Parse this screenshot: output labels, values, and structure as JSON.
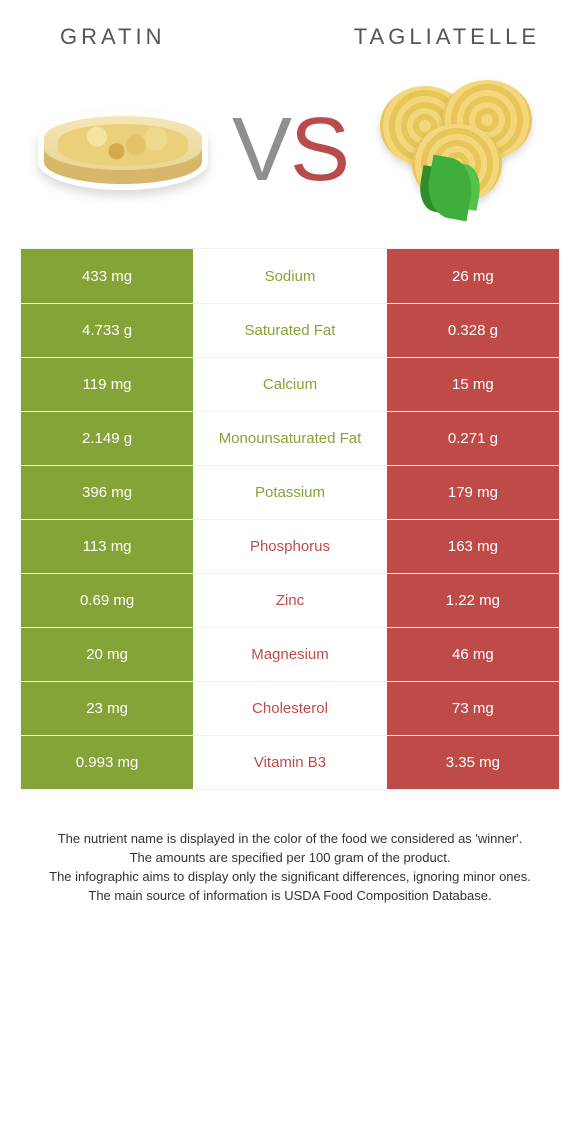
{
  "colors": {
    "green": "#85a437",
    "red": "#bf4b48",
    "green_text": "#85a437",
    "red_text": "#bf4b48",
    "neutral_cell": "#ffffff"
  },
  "header": {
    "left_title": "GRATIN",
    "right_title": "TAGLIATELLE",
    "vs_v": "V",
    "vs_s": "S"
  },
  "rows": [
    {
      "left": "433 mg",
      "label": "Sodium",
      "right": "26 mg",
      "winner": "left"
    },
    {
      "left": "4.733 g",
      "label": "Saturated Fat",
      "right": "0.328 g",
      "winner": "left"
    },
    {
      "left": "119 mg",
      "label": "Calcium",
      "right": "15 mg",
      "winner": "left"
    },
    {
      "left": "2.149 g",
      "label": "Monounsaturated Fat",
      "right": "0.271 g",
      "winner": "left"
    },
    {
      "left": "396 mg",
      "label": "Potassium",
      "right": "179 mg",
      "winner": "left"
    },
    {
      "left": "113 mg",
      "label": "Phosphorus",
      "right": "163 mg",
      "winner": "right"
    },
    {
      "left": "0.69 mg",
      "label": "Zinc",
      "right": "1.22 mg",
      "winner": "right"
    },
    {
      "left": "20 mg",
      "label": "Magnesium",
      "right": "46 mg",
      "winner": "right"
    },
    {
      "left": "23 mg",
      "label": "Cholesterol",
      "right": "73 mg",
      "winner": "right"
    },
    {
      "left": "0.993 mg",
      "label": "Vitamin B3",
      "right": "3.35 mg",
      "winner": "right"
    }
  ],
  "footnotes": [
    "The nutrient name is displayed in the color of the food we considered as 'winner'.",
    "The amounts are specified per 100 gram of the product.",
    "The infographic aims to display only the significant differences, ignoring minor ones.",
    "The main source of information is USDA Food Composition Database."
  ]
}
